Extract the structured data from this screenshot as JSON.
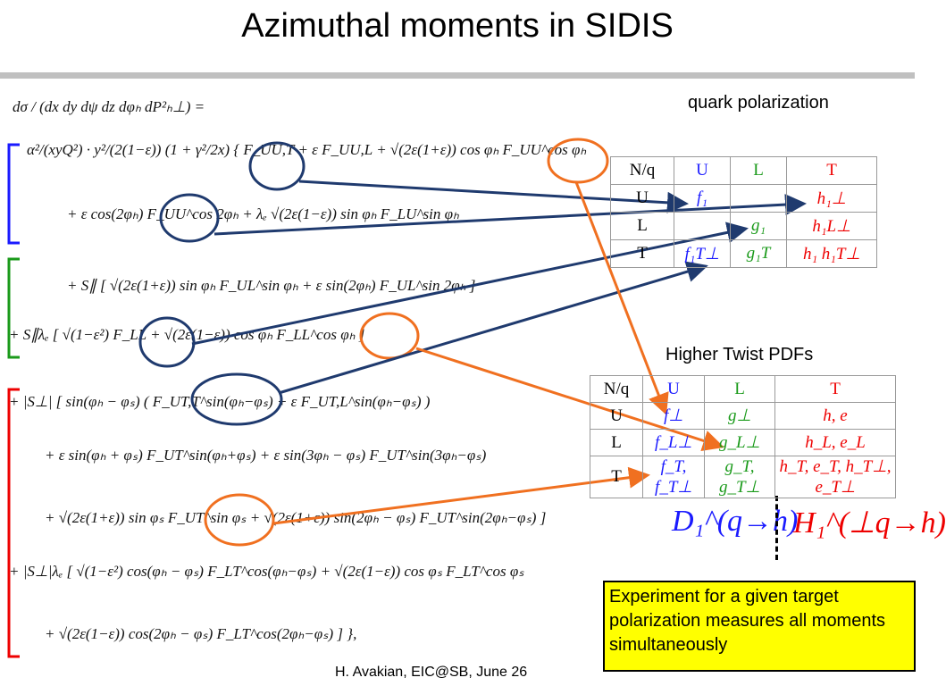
{
  "title": "Azimuthal moments in SIDIS",
  "formula": {
    "lhs": "dσ / (dx dy dψ dz dφₕ dP²ₕ⊥) =",
    "lines": [
      "α²/(xyQ²) · y²/(2(1−ε)) (1 + γ²/2x) { F_UU,T + ε F_UU,L + √(2ε(1+ε)) cos φₕ F_UU^cos φₕ",
      "+ ε cos(2φₕ) F_UU^cos 2φₕ + λₑ √(2ε(1−ε)) sin φₕ F_LU^sin φₕ",
      "+ S∥ [ √(2ε(1+ε)) sin φₕ F_UL^sin φₕ + ε sin(2φₕ) F_UL^sin 2φₕ ]",
      "+ S∥λₑ [ √(1−ε²) F_LL + √(2ε(1−ε)) cos φₕ F_LL^cos φₕ ]",
      "+ |S⊥| [ sin(φₕ − φₛ) ( F_UT,T^sin(φₕ−φₛ) + ε F_UT,L^sin(φₕ−φₛ) )",
      "+ ε sin(φₕ + φₛ) F_UT^sin(φₕ+φₛ) + ε sin(3φₕ − φₛ) F_UT^sin(3φₕ−φₛ)",
      "+ √(2ε(1+ε)) sin φₛ F_UT^sin φₛ + √(2ε(1+ε)) sin(2φₕ − φₛ) F_UT^sin(2φₕ−φₛ) ]",
      "+ |S⊥|λₑ [ √(1−ε²) cos(φₕ − φₛ) F_LT^cos(φₕ−φₛ) + √(2ε(1−ε)) cos φₛ F_LT^cos φₛ",
      "+ √(2ε(1−ε)) cos(2φₕ − φₛ) F_LT^cos(2φₕ−φₛ) ] },"
    ]
  },
  "quark_polarization": "quark polarization",
  "table_leading": {
    "header": [
      "N/q",
      "U",
      "L",
      "T"
    ],
    "rows": [
      [
        "U",
        "f₁",
        null,
        "h₁⊥"
      ],
      [
        "L",
        null,
        "g₁",
        "h₁L⊥"
      ],
      [
        "T",
        "f₁T⊥",
        "g₁T",
        "h₁ h₁T⊥"
      ]
    ]
  },
  "higher_twist_label": "Higher Twist PDFs",
  "table_twist": {
    "header": [
      "N/q",
      "U",
      "L",
      "T"
    ],
    "rows": [
      [
        "U",
        "f⊥",
        "g⊥",
        "h, e"
      ],
      [
        "L",
        "f_L⊥",
        "g_L⊥",
        "h_L, e_L"
      ],
      [
        "T",
        "f_T, f_T⊥",
        "g_T, g_T⊥",
        "h_T, e_T, h_T⊥, e_T⊥"
      ]
    ]
  },
  "fragmentation": [
    "D₁^(q→h)",
    "H₁^(⊥q→h)"
  ],
  "note": "Experiment for a given target polarization measures all moments simultaneously",
  "footer": "H. Avakian, EIC@SB,  June 26"
}
